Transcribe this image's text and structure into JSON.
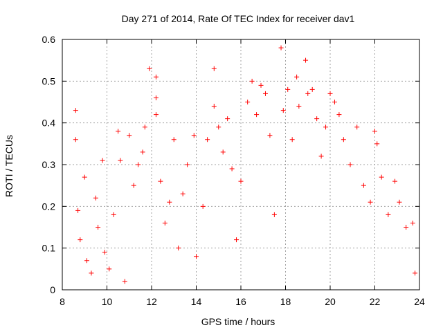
{
  "chart_data": {
    "type": "scatter",
    "title": "Day 271 of 2014, Rate Of TEC Index for receiver dav1",
    "xlabel": "GPS time / hours",
    "ylabel": "ROTI / TECUs",
    "xlim": [
      8,
      24
    ],
    "ylim": [
      0,
      0.6
    ],
    "xticks": [
      8,
      10,
      12,
      14,
      16,
      18,
      20,
      22,
      24
    ],
    "yticks": [
      0,
      0.1,
      0.2,
      0.3,
      0.4,
      0.5,
      0.6
    ],
    "xtick_labels": [
      "8",
      "10",
      "12",
      "14",
      "16",
      "18",
      "20",
      "22",
      "24"
    ],
    "ytick_labels": [
      "0",
      "0.1",
      "0.2",
      "0.3",
      "0.4",
      "0.5",
      "0.6"
    ],
    "grid": true,
    "marker": "+",
    "series": [
      {
        "name": "dav1",
        "color": "#ff0000",
        "points": [
          [
            8.6,
            0.43
          ],
          [
            8.6,
            0.36
          ],
          [
            8.7,
            0.19
          ],
          [
            8.8,
            0.12
          ],
          [
            9.0,
            0.27
          ],
          [
            9.1,
            0.07
          ],
          [
            9.3,
            0.04
          ],
          [
            9.5,
            0.22
          ],
          [
            9.6,
            0.15
          ],
          [
            9.8,
            0.31
          ],
          [
            9.9,
            0.09
          ],
          [
            10.1,
            0.05
          ],
          [
            10.3,
            0.18
          ],
          [
            10.5,
            0.38
          ],
          [
            10.6,
            0.31
          ],
          [
            10.8,
            0.02
          ],
          [
            11.0,
            0.37
          ],
          [
            11.2,
            0.25
          ],
          [
            11.4,
            0.3
          ],
          [
            11.6,
            0.33
          ],
          [
            11.7,
            0.39
          ],
          [
            11.9,
            0.53
          ],
          [
            12.2,
            0.51
          ],
          [
            12.2,
            0.46
          ],
          [
            12.2,
            0.42
          ],
          [
            12.4,
            0.26
          ],
          [
            12.6,
            0.16
          ],
          [
            12.8,
            0.21
          ],
          [
            13.0,
            0.36
          ],
          [
            13.2,
            0.1
          ],
          [
            13.4,
            0.23
          ],
          [
            13.6,
            0.3
          ],
          [
            13.9,
            0.37
          ],
          [
            14.0,
            0.08
          ],
          [
            14.3,
            0.2
          ],
          [
            14.5,
            0.36
          ],
          [
            14.8,
            0.53
          ],
          [
            14.8,
            0.44
          ],
          [
            15.0,
            0.39
          ],
          [
            15.2,
            0.33
          ],
          [
            15.4,
            0.41
          ],
          [
            15.6,
            0.29
          ],
          [
            15.8,
            0.12
          ],
          [
            16.0,
            0.26
          ],
          [
            16.3,
            0.45
          ],
          [
            16.5,
            0.5
          ],
          [
            16.7,
            0.42
          ],
          [
            16.9,
            0.49
          ],
          [
            17.1,
            0.47
          ],
          [
            17.3,
            0.37
          ],
          [
            17.5,
            0.18
          ],
          [
            17.8,
            0.58
          ],
          [
            17.9,
            0.43
          ],
          [
            18.1,
            0.48
          ],
          [
            18.3,
            0.36
          ],
          [
            18.5,
            0.51
          ],
          [
            18.6,
            0.44
          ],
          [
            18.9,
            0.55
          ],
          [
            19.0,
            0.47
          ],
          [
            19.2,
            0.48
          ],
          [
            19.4,
            0.41
          ],
          [
            19.6,
            0.32
          ],
          [
            19.8,
            0.39
          ],
          [
            20.0,
            0.47
          ],
          [
            20.2,
            0.45
          ],
          [
            20.4,
            0.42
          ],
          [
            20.6,
            0.36
          ],
          [
            20.9,
            0.3
          ],
          [
            21.2,
            0.39
          ],
          [
            21.5,
            0.25
          ],
          [
            21.8,
            0.21
          ],
          [
            22.0,
            0.38
          ],
          [
            22.1,
            0.35
          ],
          [
            22.3,
            0.27
          ],
          [
            22.6,
            0.18
          ],
          [
            22.9,
            0.26
          ],
          [
            23.1,
            0.21
          ],
          [
            23.4,
            0.15
          ],
          [
            23.7,
            0.16
          ],
          [
            23.8,
            0.04
          ]
        ]
      }
    ]
  }
}
